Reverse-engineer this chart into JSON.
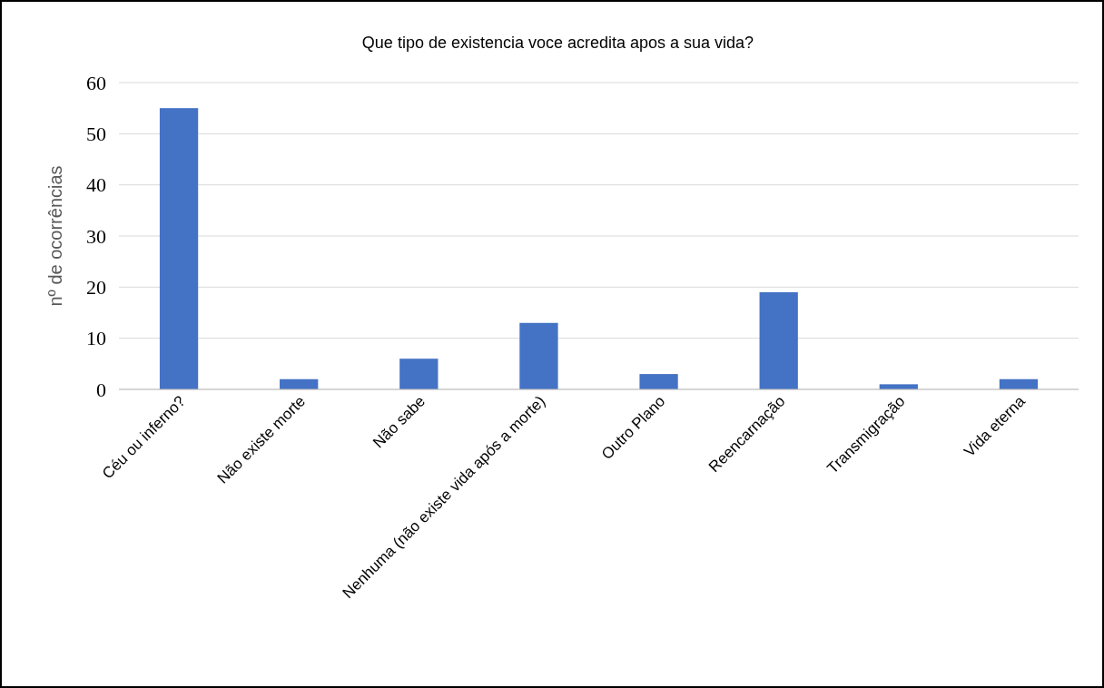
{
  "chart_data": {
    "type": "bar",
    "title": "Que tipo de existencia voce acredita apos a sua vida?",
    "ylabel": "nº de ocorrências",
    "categories": [
      "Céu ou inferno?",
      "Não existe morte",
      "Não sabe",
      "Nenhuma (não existe vida após a morte)",
      "Outro Plano",
      "Reencarnação",
      "Transmigração",
      "Vida eterna"
    ],
    "values": [
      55,
      2,
      6,
      13,
      3,
      19,
      1,
      2
    ],
    "color": "#4472c4",
    "ylim": [
      0,
      60
    ],
    "yticks": [
      0,
      10,
      20,
      30,
      40,
      50,
      60
    ],
    "grid": "y"
  }
}
